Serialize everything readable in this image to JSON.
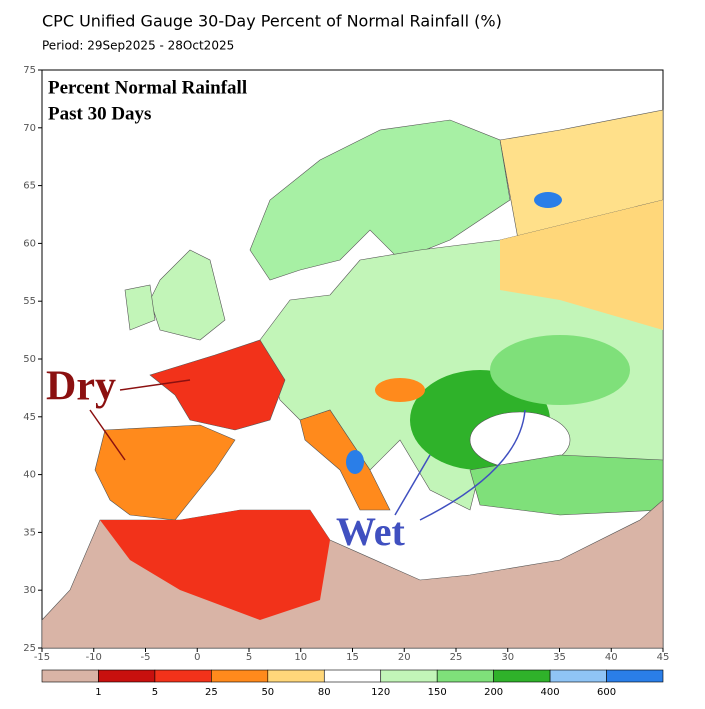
{
  "header": {
    "title": "CPC Unified Gauge 30-Day Percent of Normal Rainfall (%)",
    "period": "Period: 29Sep2025 - 28Oct2025"
  },
  "map": {
    "inset_title": "Percent Normal Rainfall",
    "inset_subtitle": "Past 30 Days",
    "annotations": [
      "Dry",
      "Wet"
    ],
    "lon_ticks": [
      -15,
      -10,
      -5,
      0,
      5,
      10,
      15,
      20,
      25,
      30,
      35,
      40,
      45
    ],
    "lat_ticks": [
      25,
      30,
      35,
      40,
      45,
      50,
      55,
      60,
      65,
      70,
      75
    ]
  },
  "legend": {
    "labels": [
      1,
      5,
      25,
      50,
      80,
      120,
      150,
      200,
      400,
      600
    ],
    "colors": [
      "#d9b4a6",
      "#c8100e",
      "#f2321a",
      "#ff8a1c",
      "#ffd77a",
      "#ffffff",
      "#c2f5b8",
      "#7fe07a",
      "#2fb22a",
      "#8fc4f5",
      "#2a7ee8"
    ]
  }
}
